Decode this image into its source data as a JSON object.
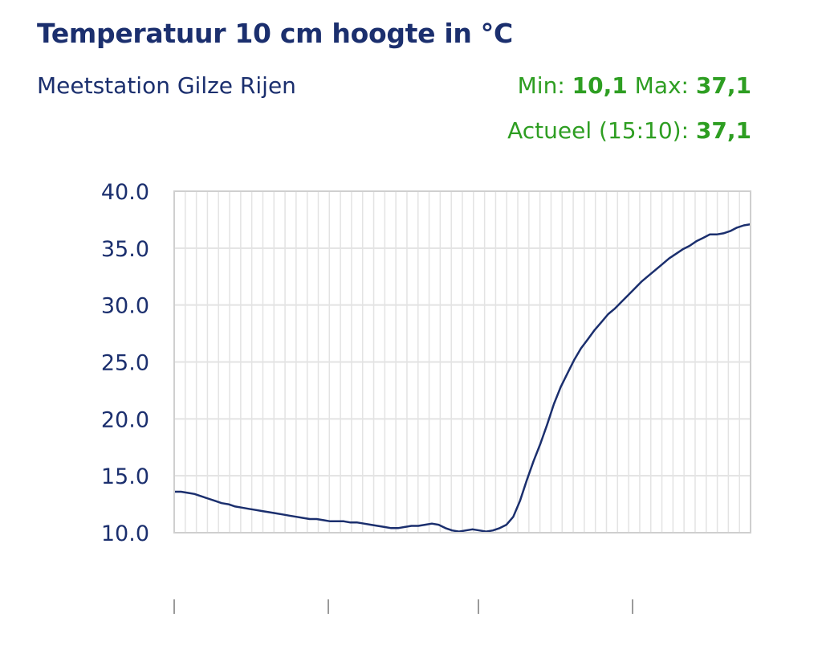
{
  "header": {
    "title": "Temperatuur 10 cm hoogte in °C",
    "station": "Meetstation Gilze Rijen",
    "min_label": "Min:",
    "min_value": "10,1",
    "max_label": "Max:",
    "max_value": "37,1",
    "current_label": "Actueel (15:10):",
    "current_value": "37,1"
  },
  "colors": {
    "title": "#1b2f6e",
    "stats": "#2e9e22",
    "line": "#1b2f6e",
    "grid": "#e3e3e3"
  },
  "chart_data": {
    "type": "line",
    "title": "Temperatuur 10 cm hoogte in °C",
    "xlabel": "",
    "ylabel": "",
    "ylim": [
      10,
      40
    ],
    "yticks": [
      "10.0",
      "15.0",
      "20.0",
      "25.0",
      "30.0",
      "35.0",
      "40.0"
    ],
    "grid": true,
    "x_tick_marks": 4,
    "series": [
      {
        "values": [
          13.6,
          13.6,
          13.5,
          13.4,
          13.2,
          13.0,
          12.8,
          12.6,
          12.5,
          12.3,
          12.2,
          12.1,
          12.0,
          11.9,
          11.8,
          11.7,
          11.6,
          11.5,
          11.4,
          11.3,
          11.2,
          11.2,
          11.1,
          11.0,
          11.0,
          11.0,
          10.9,
          10.9,
          10.8,
          10.7,
          10.6,
          10.5,
          10.4,
          10.4,
          10.5,
          10.6,
          10.6,
          10.7,
          10.8,
          10.7,
          10.4,
          10.2,
          10.1,
          10.2,
          10.3,
          10.2,
          10.1,
          10.2,
          10.4,
          10.7,
          11.4,
          12.8,
          14.6,
          16.3,
          17.8,
          19.5,
          21.3,
          22.8,
          24.0,
          25.2,
          26.2,
          27.0,
          27.8,
          28.5,
          29.2,
          29.7,
          30.3,
          30.9,
          31.5,
          32.1,
          32.6,
          33.1,
          33.6,
          34.1,
          34.5,
          34.9,
          35.2,
          35.6,
          35.9,
          36.2,
          36.2,
          36.3,
          36.5,
          36.8,
          37.0,
          37.1
        ]
      }
    ]
  }
}
